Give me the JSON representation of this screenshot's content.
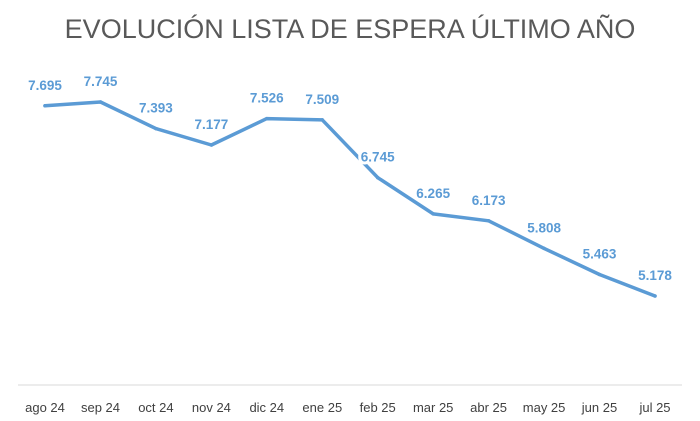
{
  "chart_data": {
    "type": "line",
    "title": "EVOLUCIÓN LISTA DE ESPERA ÚLTIMO AÑO",
    "categories": [
      "ago 24",
      "sep 24",
      "oct 24",
      "nov 24",
      "dic 24",
      "ene 25",
      "feb 25",
      "mar 25",
      "abr 25",
      "may 25",
      "jun 25",
      "jul 25"
    ],
    "series": [
      {
        "values": [
          7695,
          7745,
          7393,
          7177,
          7526,
          7509,
          6745,
          6265,
          6173,
          5808,
          5463,
          5178
        ],
        "labels": [
          "7.695",
          "7.745",
          "7.393",
          "7.177",
          "7.526",
          "7.509",
          "6.745",
          "6.265",
          "6.173",
          "5.808",
          "5.463",
          "5.178"
        ],
        "color": "#5b9bd5"
      }
    ],
    "ylim": [
      4000,
      8500
    ],
    "grid": false,
    "axis_line_color": "#d9d9d9",
    "title_color": "#595959",
    "tick_color": "#404040"
  }
}
